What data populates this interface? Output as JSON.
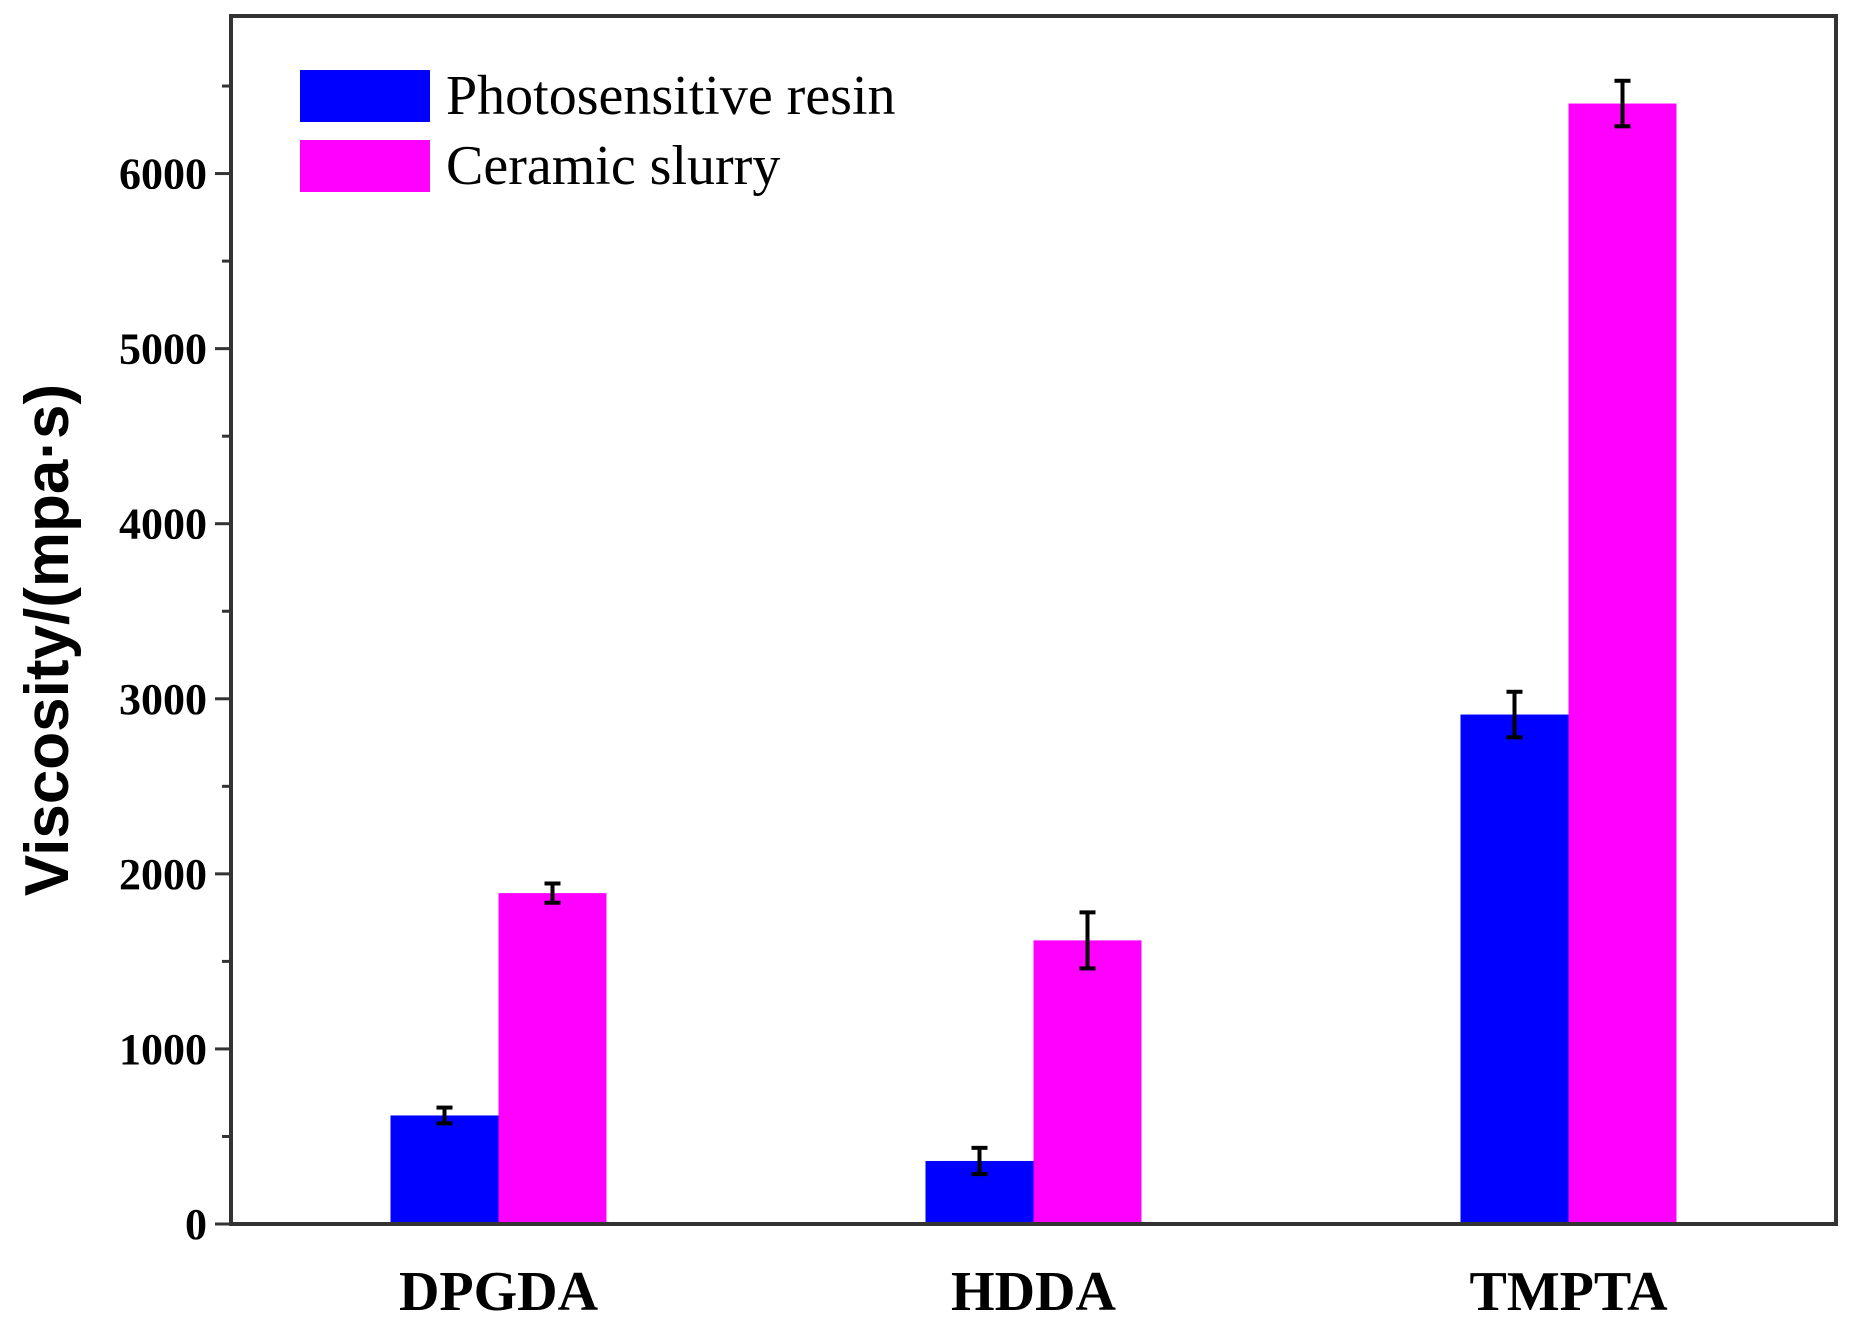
{
  "chart_data": {
    "type": "bar",
    "title": "",
    "xlabel": "",
    "ylabel": "Viscosity/(mpa·s)",
    "categories": [
      "DPGDA",
      "HDDA",
      "TMPTA"
    ],
    "series": [
      {
        "name": "Photosensitive resin",
        "color": "#0000ff",
        "values": [
          620,
          360,
          2910
        ],
        "errors": [
          45,
          75,
          130
        ]
      },
      {
        "name": "Ceramic slurry",
        "color": "#ff00ff",
        "values": [
          1890,
          1620,
          6400
        ],
        "errors": [
          55,
          160,
          130
        ]
      }
    ],
    "ylim": [
      0,
      6900
    ],
    "yticks": [
      0,
      1000,
      2000,
      3000,
      4000,
      5000,
      6000
    ],
    "yminor_step": 500,
    "grid": false,
    "legend_position": "top-left"
  }
}
